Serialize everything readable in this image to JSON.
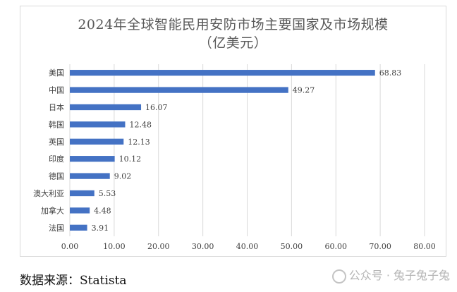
{
  "chart_data": {
    "type": "bar",
    "orientation": "horizontal",
    "title": "2024年全球智能民用安防市场主要国家及市场规模",
    "subtitle": "（亿美元）",
    "categories": [
      "美国",
      "中国",
      "日本",
      "韩国",
      "英国",
      "印度",
      "德国",
      "澳大利亚",
      "加拿大",
      "法国"
    ],
    "values": [
      68.83,
      49.27,
      16.07,
      12.48,
      12.13,
      10.12,
      9.02,
      5.53,
      4.48,
      3.91
    ],
    "data_labels": [
      "68.83",
      "49.27",
      "16.07",
      "12.48",
      "12.13",
      "10.12",
      "9.02",
      "5.53",
      "4.48",
      "3.91"
    ],
    "xlim": [
      0,
      80
    ],
    "x_ticks": [
      "0.00",
      "10.00",
      "20.00",
      "30.00",
      "40.00",
      "50.00",
      "60.00",
      "70.00",
      "80.00"
    ],
    "grid": true,
    "legend": "none",
    "colors": {
      "bar": "#4472c4",
      "grid": "#d9d9d9",
      "text": "#404040"
    }
  },
  "footer": {
    "source": "数据来源：Statista",
    "watermark": "公众号 · 兔子兔子兔"
  }
}
